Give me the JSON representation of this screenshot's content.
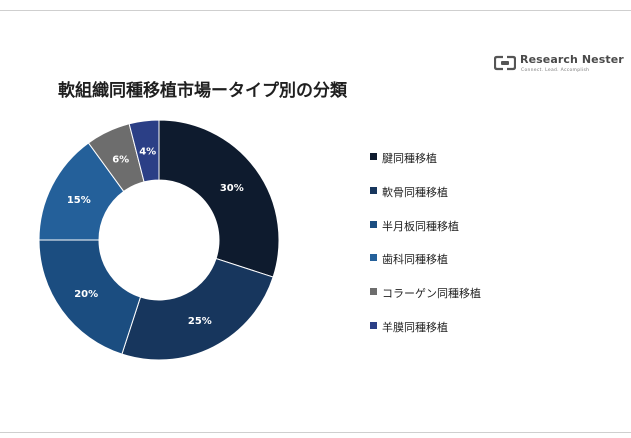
{
  "title": "軟組織同種移植市場ータイプ別の分類",
  "logo": {
    "name": "Research Nester",
    "tagline": "Connect. Lead. Accomplish",
    "icon": "rn-logo-icon"
  },
  "chart_data": {
    "type": "donut",
    "title": "軟組織同種移植市場ータイプ別の分類",
    "legend_position": "right",
    "categories": [
      "腱同種移植",
      "軟骨同種移植",
      "半月板同種移植",
      "歯科同種移植",
      "コラーゲン同種移植",
      "羊膜同種移植"
    ],
    "values": [
      30,
      25,
      20,
      15,
      6,
      4
    ],
    "labels": [
      "30%",
      "25%",
      "20%",
      "15%",
      "6%",
      "4%"
    ],
    "colors": [
      "#0e1b2e",
      "#17365d",
      "#1b4d80",
      "#24609a",
      "#6d6d6d",
      "#2b3f86"
    ]
  }
}
